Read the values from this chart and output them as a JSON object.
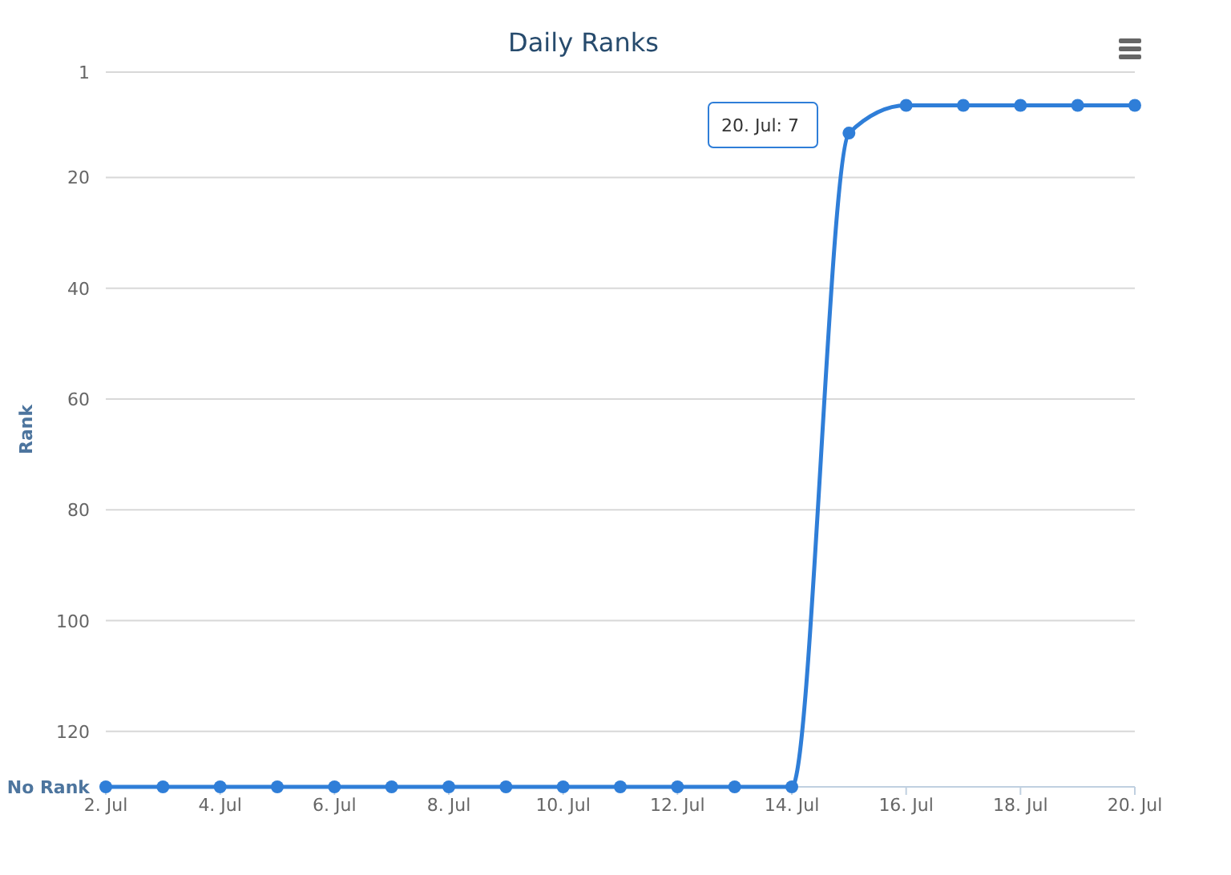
{
  "chart_data": {
    "type": "line",
    "title": "Daily Ranks",
    "ylabel": "Rank",
    "x": [
      "--07-02",
      "--07-03",
      "--07-04",
      "--07-05",
      "--07-06",
      "--07-07",
      "--07-08",
      "--07-09",
      "--07-10",
      "--07-11",
      "--07-12",
      "--07-13",
      "--07-14",
      "--07-15",
      "--07-16",
      "--07-17",
      "--07-18",
      "--07-19",
      "--07-20"
    ],
    "series": [
      {
        "color": "#2f7ed8",
        "values": [
          130,
          130,
          130,
          130,
          130,
          130,
          130,
          130,
          130,
          130,
          130,
          130,
          130,
          12,
          7,
          7,
          7,
          7,
          7
        ]
      }
    ],
    "xlim": [
      "--07-02",
      "--07-20"
    ],
    "xticks": [
      {
        "value": "--07-02",
        "label": "2. Jul"
      },
      {
        "value": "--07-04",
        "label": "4. Jul"
      },
      {
        "value": "--07-06",
        "label": "6. Jul"
      },
      {
        "value": "--07-08",
        "label": "8. Jul"
      },
      {
        "value": "--07-10",
        "label": "10. Jul"
      },
      {
        "value": "--07-12",
        "label": "12. Jul"
      },
      {
        "value": "--07-14",
        "label": "14. Jul"
      },
      {
        "value": "--07-16",
        "label": "16. Jul"
      },
      {
        "value": "--07-18",
        "label": "18. Jul"
      },
      {
        "value": "--07-20",
        "label": "20. Jul"
      }
    ],
    "ylim": [
      130,
      1
    ],
    "yticks": [
      1,
      20,
      40,
      60,
      80,
      100,
      120,
      {
        "value": 130,
        "label": "No Rank"
      }
    ],
    "grid": "y",
    "marker": "circle",
    "line_style": "solid",
    "annotations": [
      "20. Jul: 7"
    ]
  }
}
